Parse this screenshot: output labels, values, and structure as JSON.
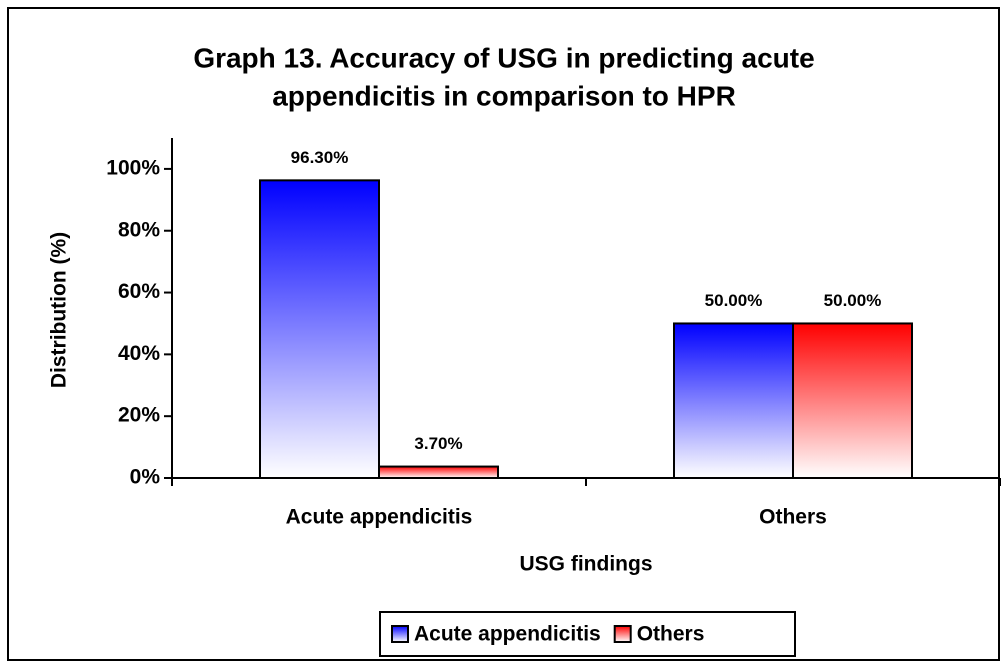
{
  "chart_data": {
    "type": "bar",
    "title": [
      "Graph 13. Accuracy of USG in predicting acute",
      "appendicitis in comparison to HPR"
    ],
    "xlabel": "USG findings",
    "ylabel": "Distribution (%)",
    "categories": [
      "Acute appendicitis",
      "Others"
    ],
    "series": [
      {
        "name": "Acute appendicitis",
        "color": "#0000ff",
        "values": [
          96.3,
          50
        ],
        "value_labels": [
          "96.30%",
          "50.00%"
        ]
      },
      {
        "name": "Others",
        "color": "#ff0000",
        "values": [
          3.7,
          50
        ],
        "value_labels": [
          "3.70%",
          "50.00%"
        ]
      }
    ],
    "ylim": [
      0,
      110
    ],
    "yticks": [
      {
        "value": 0,
        "label": "0%"
      },
      {
        "value": 20,
        "label": "20%"
      },
      {
        "value": 40,
        "label": "40%"
      },
      {
        "value": 60,
        "label": "60%"
      },
      {
        "value": 80,
        "label": "80%"
      },
      {
        "value": 100,
        "label": "100%"
      }
    ],
    "legend": "bottom",
    "grid": false
  }
}
